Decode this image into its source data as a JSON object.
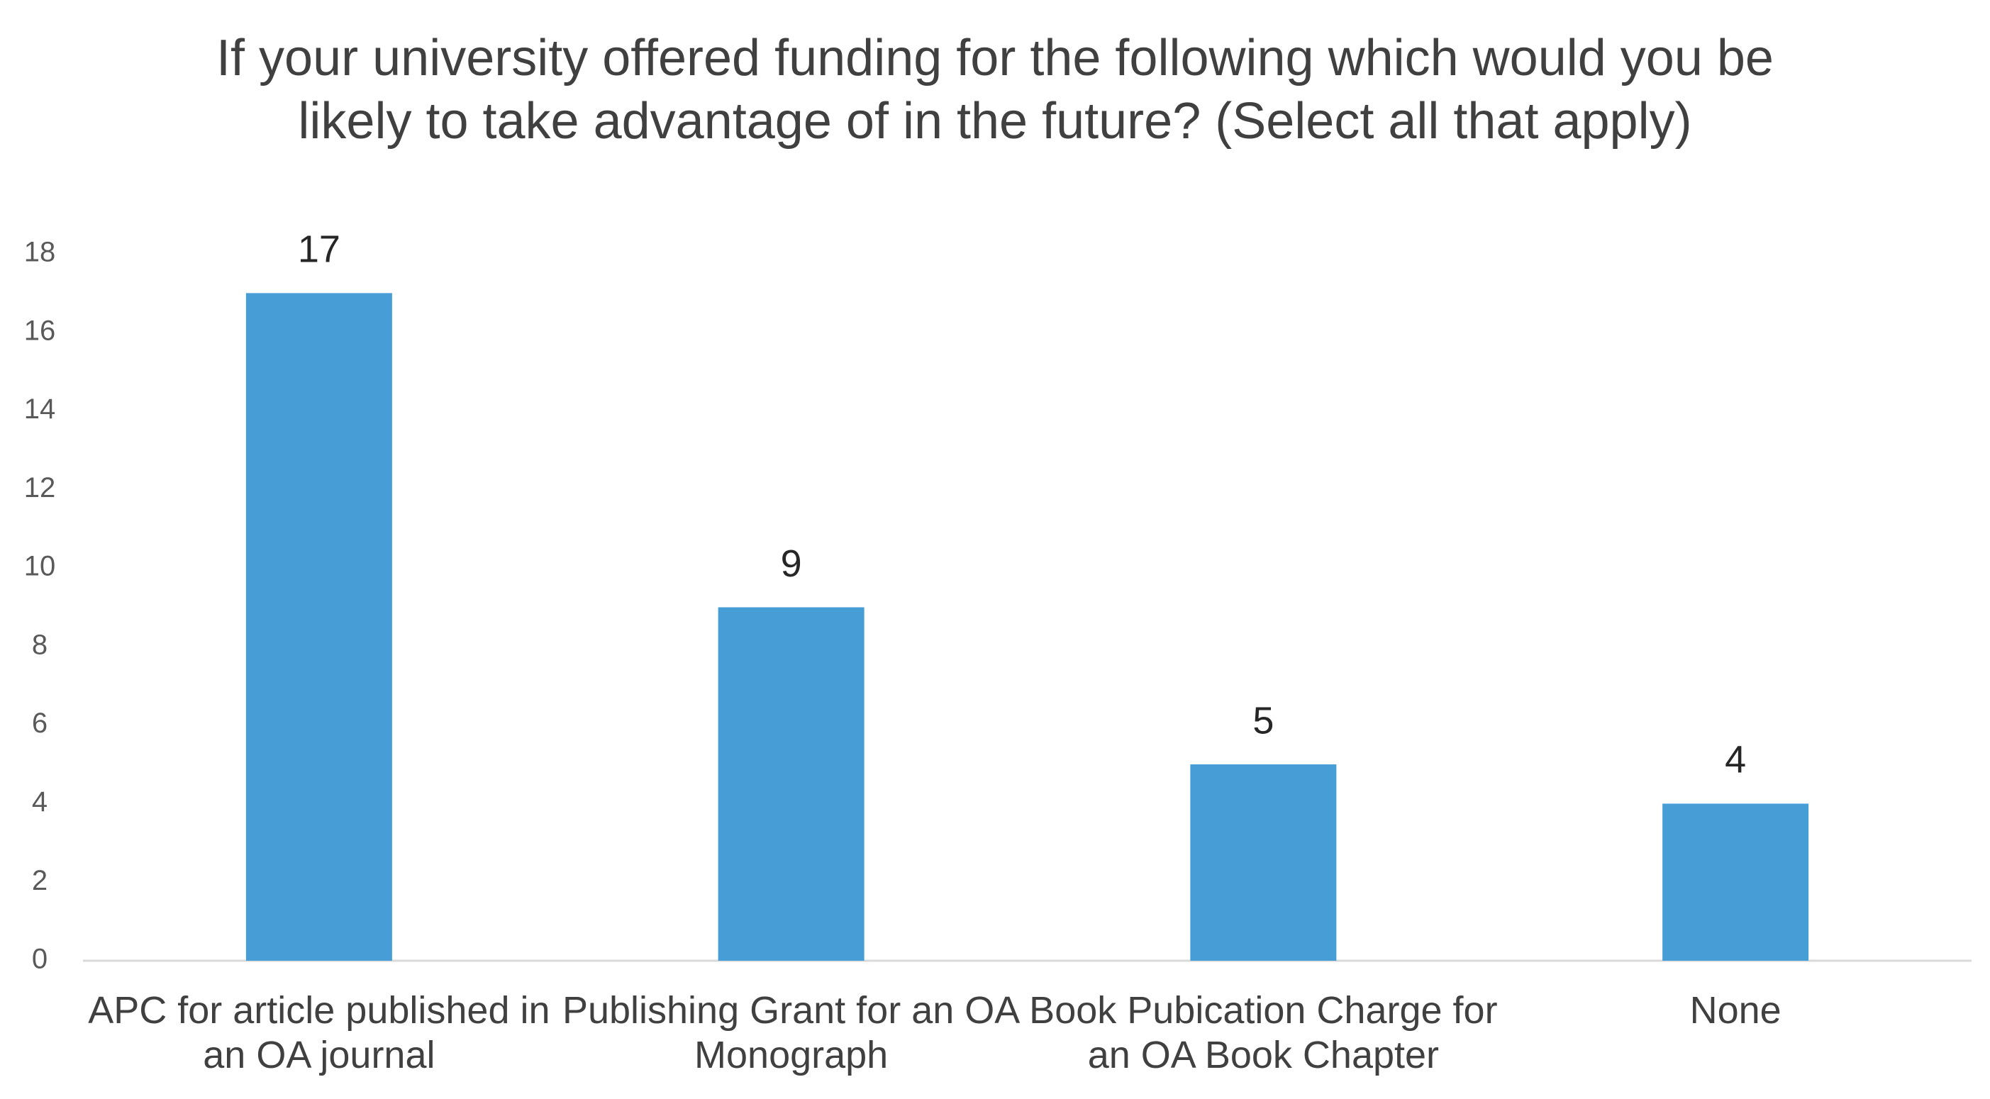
{
  "chart_data": {
    "type": "bar",
    "title": "If your university offered funding for the following which would you be likely to take advantage of in the future? (Select all that apply)",
    "categories": [
      "APC for article published in an OA journal",
      "Publishing Grant for an OA Monograph",
      "Book Pubication Charge for an OA Book Chapter",
      "None"
    ],
    "values": [
      17,
      9,
      5,
      4
    ],
    "color": "#479ed6",
    "ylim": [
      0,
      18
    ],
    "yticks": [
      0,
      2,
      4,
      6,
      8,
      10,
      12,
      14,
      16,
      18
    ],
    "grid": false
  }
}
